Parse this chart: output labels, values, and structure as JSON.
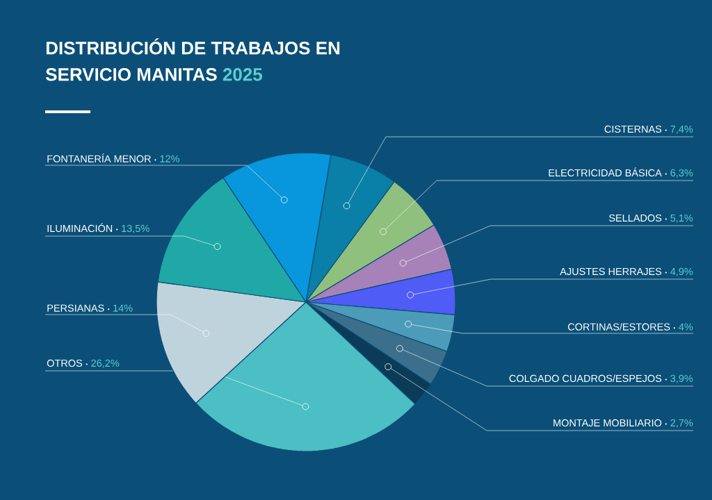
{
  "chart_data": {
    "type": "pie",
    "title": "DISTRIBUCIÓN DE TRABAJOS EN SERVICIO MANITAS",
    "subtitle": "2025",
    "categories": [
      "CISTERNAS",
      "ELECTRICIDAD BÁSICA",
      "SELLADOS",
      "AJUSTES HERRAJES",
      "CORTINAS/ESTORES",
      "COLGADO CUADROS/ESPEJOS",
      "MONTAJE MOBILIARIO",
      "OTROS",
      "PERSIANAS",
      "ILUMINACIÓN",
      "FONTANERÍA MENOR"
    ],
    "values": [
      7.4,
      6.3,
      5.1,
      4.9,
      4,
      3.9,
      2.7,
      26.2,
      14,
      13.5,
      12
    ],
    "value_labels": [
      "7,4%",
      "6,3%",
      "5,1%",
      "4,9%",
      "4%",
      "3,9%",
      "2,7%",
      "26,2%",
      "14%",
      "13,5%",
      "12%"
    ],
    "colors": [
      "#0a7fa8",
      "#8fc07e",
      "#a682b8",
      "#4f5cf5",
      "#4c9bb8",
      "#3b6f8c",
      "#0c3b58",
      "#4bbfc4",
      "#bfd3dc",
      "#1fa8a6",
      "#0896dc"
    ]
  }
}
